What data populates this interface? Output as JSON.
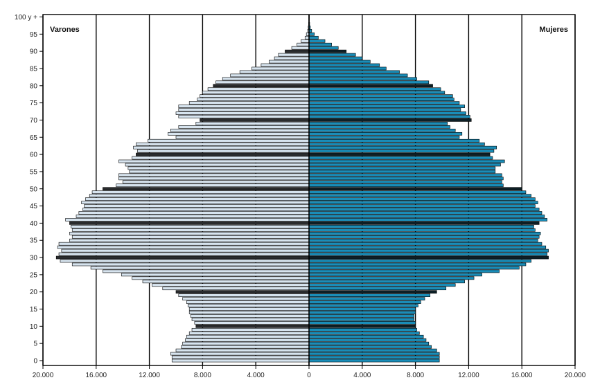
{
  "chart_data": {
    "type": "bar",
    "orientation": "horizontal-population-pyramid",
    "left_label": "Varones",
    "right_label": "Mujeres",
    "xlim": [
      -20000,
      20000
    ],
    "x_ticks": [
      -20000,
      -16000,
      -12000,
      -8000,
      -4000,
      0,
      4000,
      8000,
      12000,
      16000,
      20000
    ],
    "x_tick_labels": [
      "20.000",
      "16.000",
      "12.000",
      "8.000",
      "4.000",
      "0",
      "4.000",
      "8.000",
      "12.000",
      "16.000",
      "20.000"
    ],
    "y_ticks": [
      0,
      5,
      10,
      15,
      20,
      25,
      30,
      35,
      40,
      45,
      50,
      55,
      60,
      65,
      70,
      75,
      80,
      85,
      90,
      95,
      100
    ],
    "y_tick_labels": [
      "0",
      "5",
      "10",
      "15",
      "20",
      "25",
      "30",
      "35",
      "40",
      "45",
      "50",
      "55",
      "60",
      "65",
      "70",
      "75",
      "80",
      "85",
      "90",
      "95",
      "100 y +"
    ],
    "grid": "vertical",
    "colors": {
      "male": "#d7e4ef",
      "female": "#1a8db8",
      "decade_band": "#0c0c0c",
      "outline": "#000000"
    },
    "ages": [
      0,
      1,
      2,
      3,
      4,
      5,
      6,
      7,
      8,
      9,
      10,
      11,
      12,
      13,
      14,
      15,
      16,
      17,
      18,
      19,
      20,
      21,
      22,
      23,
      24,
      25,
      26,
      27,
      28,
      29,
      30,
      31,
      32,
      33,
      34,
      35,
      36,
      37,
      38,
      39,
      40,
      41,
      42,
      43,
      44,
      45,
      46,
      47,
      48,
      49,
      50,
      51,
      52,
      53,
      54,
      55,
      56,
      57,
      58,
      59,
      60,
      61,
      62,
      63,
      64,
      65,
      66,
      67,
      68,
      69,
      70,
      71,
      72,
      73,
      74,
      75,
      76,
      77,
      78,
      79,
      80,
      81,
      82,
      83,
      84,
      85,
      86,
      87,
      88,
      89,
      90,
      91,
      92,
      93,
      94,
      95,
      96,
      97,
      98,
      99,
      100
    ],
    "series": [
      {
        "name": "Varones",
        "values": [
          10300,
          10300,
          10400,
          10000,
          9600,
          9500,
          9300,
          9200,
          9000,
          8800,
          8500,
          8600,
          8800,
          8900,
          9000,
          9000,
          9100,
          9200,
          9500,
          9800,
          10000,
          11000,
          11800,
          12500,
          13300,
          14100,
          15500,
          16400,
          17800,
          18700,
          19000,
          18800,
          18600,
          18900,
          18800,
          18000,
          17800,
          18000,
          17800,
          17900,
          18000,
          18300,
          17500,
          17300,
          17000,
          16900,
          17100,
          16800,
          16500,
          16300,
          15500,
          14500,
          14000,
          14300,
          14300,
          13500,
          13600,
          13800,
          14300,
          13300,
          13000,
          12900,
          13200,
          13000,
          12100,
          10000,
          10600,
          10400,
          9800,
          8500,
          8200,
          9800,
          10000,
          9800,
          9800,
          9000,
          8400,
          8200,
          8000,
          7600,
          7200,
          7000,
          6500,
          5900,
          5200,
          4300,
          3600,
          3000,
          2600,
          2300,
          1800,
          1300,
          900,
          600,
          300,
          200,
          100,
          60,
          30,
          10,
          5
        ]
      },
      {
        "name": "Mujeres",
        "values": [
          9800,
          9800,
          9800,
          9600,
          9200,
          9000,
          8800,
          8600,
          8300,
          8100,
          8000,
          8000,
          7900,
          7900,
          8000,
          8000,
          8200,
          8400,
          8700,
          9100,
          9600,
          10300,
          11000,
          11700,
          12400,
          13000,
          14300,
          15800,
          16300,
          16700,
          18000,
          17900,
          18000,
          17800,
          17500,
          17200,
          17300,
          17400,
          17000,
          16900,
          17300,
          17900,
          17700,
          17500,
          17300,
          17000,
          17200,
          17000,
          16700,
          16300,
          16000,
          14600,
          14500,
          14600,
          14500,
          14000,
          14000,
          14400,
          14700,
          13800,
          13600,
          13900,
          14100,
          13200,
          12800,
          11300,
          11500,
          11000,
          10600,
          10400,
          12200,
          12100,
          11800,
          11400,
          11700,
          11300,
          10900,
          10800,
          10200,
          9900,
          9300,
          9000,
          8100,
          7400,
          6800,
          5800,
          5300,
          4600,
          4000,
          3500,
          2800,
          2200,
          1700,
          1200,
          700,
          400,
          200,
          100,
          50,
          20,
          10
        ]
      }
    ]
  }
}
